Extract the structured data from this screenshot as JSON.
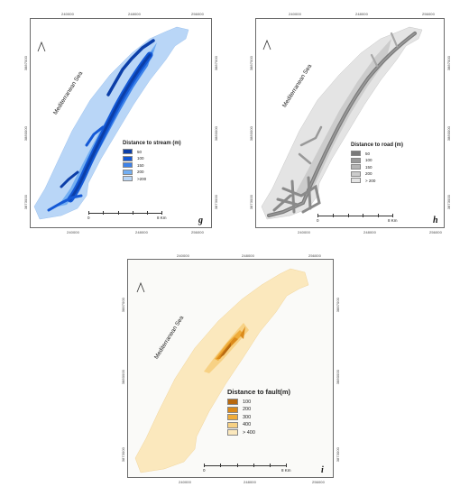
{
  "panels": {
    "g": {
      "letter": "g",
      "sea_label": "Mediterranean Sea",
      "north": "N",
      "legend_title": "Distance to stream (m)",
      "classes": [
        {
          "label": "50",
          "color": "#0b3ea8"
        },
        {
          "label": "100",
          "color": "#1459d6"
        },
        {
          "label": "150",
          "color": "#3c82ea"
        },
        {
          "label": "200",
          "color": "#72aef2"
        },
        {
          "label": ">200",
          "color": "#b9d6f7"
        }
      ],
      "scale": {
        "start": "0",
        "end": "8 Km"
      },
      "ticks_top": [
        "240000",
        "248000",
        "256000"
      ],
      "ticks_bottom": [
        "240000",
        "248000",
        "256000"
      ],
      "ticks_left": [
        "3887000",
        "3880000",
        "3873000"
      ],
      "ticks_right": [
        "3887000",
        "3880000",
        "3873000"
      ]
    },
    "h": {
      "letter": "h",
      "sea_label": "Mediterranean Sea",
      "north": "N",
      "legend_title": "Distance to road (m)",
      "classes": [
        {
          "label": "50",
          "color": "#7a7a7a"
        },
        {
          "label": "100",
          "color": "#999999"
        },
        {
          "label": "150",
          "color": "#b4b4b4"
        },
        {
          "label": "200",
          "color": "#cccccc"
        },
        {
          "label": "> 200",
          "color": "#e4e4e4"
        }
      ],
      "scale": {
        "start": "0",
        "end": "8 Km"
      },
      "ticks_top": [
        "240000",
        "248000",
        "256000"
      ],
      "ticks_bottom": [
        "240000",
        "248000",
        "256000"
      ],
      "ticks_left": [
        "3887000",
        "3880000",
        "3873000"
      ],
      "ticks_right": [
        "3887000",
        "3880000",
        "3873000"
      ]
    },
    "i": {
      "letter": "i",
      "sea_label": "Mediterranean Sea",
      "north": "N",
      "legend_title": "Distance to fault(m)",
      "classes": [
        {
          "label": "100",
          "color": "#b8690f"
        },
        {
          "label": "200",
          "color": "#db8a1a"
        },
        {
          "label": "300",
          "color": "#efac3a"
        },
        {
          "label": "400",
          "color": "#f7d184"
        },
        {
          "label": "> 400",
          "color": "#fbe8bd"
        }
      ],
      "scale": {
        "start": "0",
        "end": "8 Km"
      },
      "ticks_top": [
        "240000",
        "248000",
        "256000"
      ],
      "ticks_bottom": [
        "240000",
        "248000",
        "256000"
      ],
      "ticks_left": [
        "3887000",
        "3880000",
        "3873000"
      ],
      "ticks_right": [
        "3887000",
        "3880000",
        "3873000"
      ]
    }
  }
}
